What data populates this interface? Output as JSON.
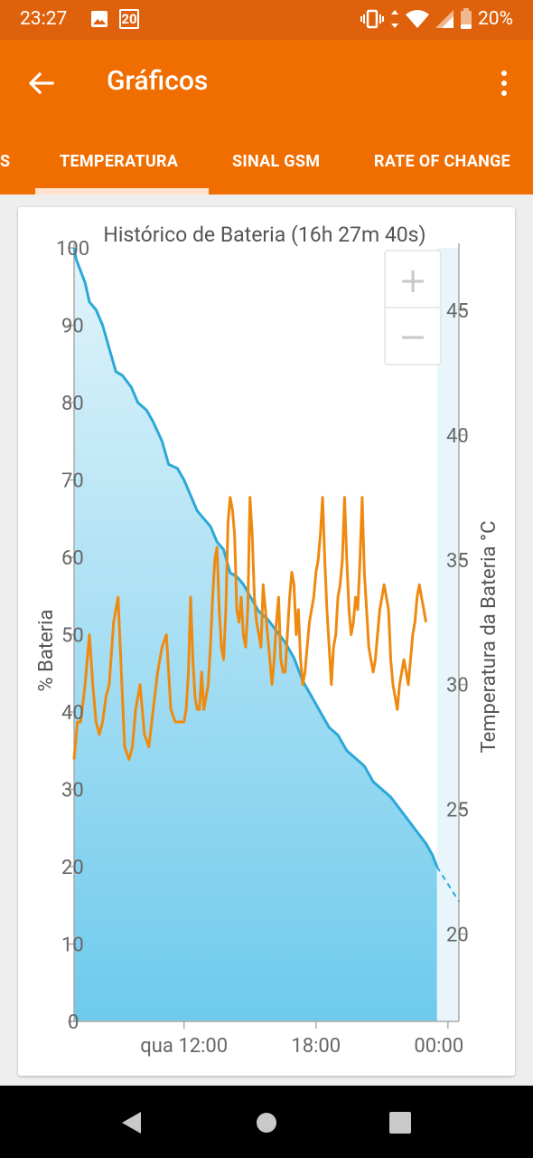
{
  "status_bar": {
    "time": "23:27",
    "notification_icons": [
      "image-icon",
      "calendar-icon"
    ],
    "calendar_day": "20",
    "system_icons": [
      "vibrate-icon",
      "data-arrows-icon",
      "wifi-icon",
      "signal-icon",
      "battery-icon"
    ],
    "battery_percent": "20%"
  },
  "app_bar": {
    "title": "Gráficos",
    "back_icon": "arrow-left-icon",
    "menu_icon": "more-vert-icon"
  },
  "tabs": [
    {
      "label": "S",
      "active": false
    },
    {
      "label": "TEMPERATURA",
      "active": true
    },
    {
      "label": "SINAL GSM",
      "active": false
    },
    {
      "label": "RATE OF CHANGE",
      "active": false
    }
  ],
  "zoom_controls": {
    "zoom_in": "+",
    "zoom_out": "−"
  },
  "colors": {
    "status_bar": "#e0610b",
    "app_bar": "#f06e00",
    "battery_line": "#2ba8d8",
    "battery_fill_top": "#e2f4fb",
    "battery_fill_bottom": "#6ecaec",
    "temperature_line": "#ef8a10"
  },
  "chart_data": {
    "type": "line",
    "title": "Histórico de Bateria (16h 27m 40s)",
    "ylabel": "% Bateria",
    "y2label": "Temperatura da Bateria °C",
    "ylim": [
      0,
      100
    ],
    "y2lim": [
      16.5,
      47.5
    ],
    "xlim": [
      7.0,
      24.5
    ],
    "x_ticks": [
      {
        "x": 12,
        "label": "qua 12:00"
      },
      {
        "x": 18,
        "label": "18:00"
      },
      {
        "x": 24,
        "label": "00:00"
      }
    ],
    "y_ticks": [
      "0",
      "10",
      "20",
      "30",
      "40",
      "50",
      "60",
      "70",
      "80",
      "90",
      "100"
    ],
    "y2_ticks": [
      "20",
      "25",
      "30",
      "35",
      "40",
      "45"
    ],
    "grid": false,
    "series": [
      {
        "axis": "left",
        "x": [
          7.0,
          7.1,
          7.3,
          7.5,
          7.7,
          8.0,
          8.3,
          8.6,
          8.9,
          9.2,
          9.6,
          9.9,
          10.3,
          10.6,
          11.0,
          11.3,
          11.7,
          12.0,
          12.3,
          12.6,
          12.9,
          13.2,
          13.5,
          13.8,
          14.1,
          14.4,
          14.7,
          15.0,
          15.4,
          15.8,
          16.2,
          16.6,
          17.0,
          17.4,
          17.8,
          18.2,
          18.6,
          19.0,
          19.4,
          19.8,
          20.2,
          20.6,
          21.0,
          21.4,
          21.8,
          22.2,
          22.6,
          23.0,
          23.3,
          23.5
        ],
        "values": [
          100,
          98.5,
          97,
          95.5,
          93,
          92,
          90,
          87,
          84,
          83.5,
          82,
          80,
          79,
          77.5,
          75,
          72,
          71.5,
          70,
          68,
          66,
          65,
          64,
          62,
          61,
          58,
          57.5,
          56.5,
          55,
          53,
          52,
          50.5,
          49,
          47,
          44,
          42,
          40,
          38,
          37,
          35,
          34,
          33,
          31,
          30,
          29,
          27.5,
          26,
          24.5,
          23,
          21.5,
          20
        ]
      },
      {
        "axis": "left",
        "projected": true,
        "x": [
          23.5,
          24.5
        ],
        "values": [
          20,
          15.5
        ]
      },
      {
        "axis": "right",
        "x": [
          7.0,
          7.15,
          7.3,
          7.5,
          7.7,
          7.85,
          8.0,
          8.15,
          8.3,
          8.45,
          8.6,
          8.8,
          9.0,
          9.15,
          9.3,
          9.5,
          9.65,
          9.8,
          10.0,
          10.2,
          10.4,
          10.6,
          10.8,
          11.0,
          11.2,
          11.4,
          11.6,
          11.8,
          12.0,
          12.1,
          12.2,
          12.3,
          12.4,
          12.5,
          12.6,
          12.7,
          12.8,
          12.9,
          13.0,
          13.1,
          13.2,
          13.3,
          13.4,
          13.5,
          13.6,
          13.7,
          13.8,
          13.9,
          14.0,
          14.1,
          14.2,
          14.3,
          14.4,
          14.5,
          14.6,
          14.7,
          14.8,
          14.9,
          15.0,
          15.1,
          15.2,
          15.3,
          15.4,
          15.5,
          15.6,
          15.7,
          15.8,
          15.9,
          16.0,
          16.1,
          16.2,
          16.3,
          16.4,
          16.5,
          16.6,
          16.7,
          16.8,
          16.9,
          17.0,
          17.1,
          17.2,
          17.3,
          17.4,
          17.5,
          17.6,
          17.7,
          17.8,
          17.9,
          18.0,
          18.1,
          18.2,
          18.3,
          18.4,
          18.5,
          18.6,
          18.7,
          18.8,
          18.9,
          19.0,
          19.1,
          19.2,
          19.3,
          19.4,
          19.5,
          19.6,
          19.7,
          19.8,
          19.9,
          20.0,
          20.1,
          20.2,
          20.3,
          20.4,
          20.5,
          20.6,
          20.7,
          20.8,
          20.9,
          21.0,
          21.1,
          21.2,
          21.3,
          21.4,
          21.5,
          21.6,
          21.7,
          21.8,
          21.9,
          22.0,
          22.1,
          22.2,
          22.3,
          22.4,
          22.5,
          22.6,
          22.7,
          22.8,
          22.9,
          23.0
        ],
        "values": [
          27,
          28.5,
          28.5,
          30,
          32,
          30,
          28.5,
          28,
          28.5,
          29.5,
          30,
          32.5,
          33.5,
          30.5,
          27.5,
          27,
          27.5,
          29,
          30,
          28,
          27.5,
          29,
          30.5,
          31.5,
          32,
          29,
          28.5,
          28.5,
          28.5,
          29,
          30.5,
          33.5,
          31,
          29.5,
          29,
          29,
          30.5,
          29,
          29.5,
          30,
          31.5,
          33.5,
          35,
          35.5,
          33,
          31.5,
          31,
          33,
          36.5,
          37.5,
          37,
          36,
          33,
          32.5,
          33.5,
          32,
          31.5,
          33,
          37.5,
          36,
          33.5,
          32.5,
          32,
          31.5,
          34,
          33,
          32,
          31,
          30,
          31,
          32.5,
          33.5,
          31,
          30.5,
          30.5,
          32,
          33.5,
          34.5,
          34,
          32,
          33,
          31,
          30,
          30.5,
          31.5,
          32.5,
          33,
          33.5,
          34.5,
          35,
          36,
          37.5,
          35,
          33,
          31.5,
          30,
          31.5,
          32,
          33.5,
          34,
          35,
          37.5,
          35,
          33,
          32,
          32.5,
          33.5,
          33,
          35,
          37.5,
          34.5,
          33,
          31.5,
          31,
          30.5,
          31,
          32,
          33,
          33.5,
          34,
          33.5,
          33,
          31,
          30,
          29.5,
          29,
          30,
          30.5,
          31,
          30.5,
          30,
          31,
          32,
          32.5,
          33.5,
          34,
          33.5,
          33,
          32.5
        ]
      }
    ]
  }
}
